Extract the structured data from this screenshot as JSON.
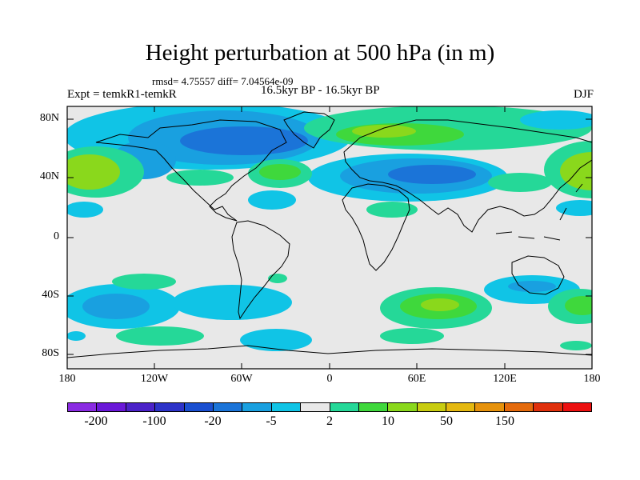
{
  "title": "Height perturbation at 500 hPa (in m)",
  "stats": "rmsd= 4.75557 diff= 7.04564e-09",
  "expt": "Expt = temkR1-temkR",
  "period": "16.5kyr BP - 16.5kyr BP",
  "season": "DJF",
  "lat_labels": [
    "80N",
    "40N",
    "0",
    "40S",
    "80S"
  ],
  "lon_labels": [
    "180",
    "120W",
    "60W",
    "0",
    "60E",
    "120E",
    "180"
  ],
  "colorbar": {
    "colors": [
      "#8a2be2",
      "#6a18d8",
      "#4b22c8",
      "#2d33c8",
      "#1a4fd0",
      "#1b74d8",
      "#19a0e0",
      "#10c4e6",
      "#e8e8e8",
      "#25d898",
      "#3fd83c",
      "#8ad81c",
      "#c8cc10",
      "#e4b810",
      "#e6920c",
      "#e46a0c",
      "#e0300c",
      "#ec1010"
    ],
    "tick_labels": [
      "-200",
      "-100",
      "-20",
      "-5",
      "2",
      "10",
      "50",
      "150"
    ]
  }
}
